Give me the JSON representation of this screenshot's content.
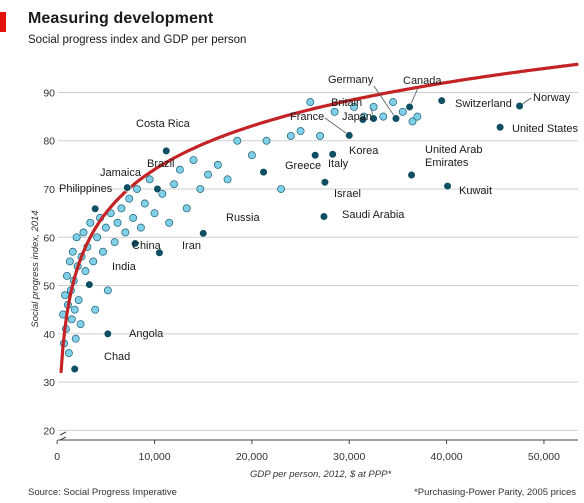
{
  "header": {
    "title": "Measuring development",
    "subtitle": "Social progress index and GDP per person"
  },
  "footer": {
    "source": "Source: Social Progress Imperative",
    "note": "*Purchasing-Power Parity, 2005 prices"
  },
  "colors": {
    "accent": "#e3120b",
    "highlight_point": "#0e4f63",
    "other_point": "#7fcfe6",
    "point_stroke": "#1d5f78",
    "grid": "#cfcfcf",
    "trend": "#c42325"
  },
  "chart_data": {
    "type": "scatter",
    "title": "Measuring development",
    "subtitle": "Social progress index and GDP per person",
    "xlabel": "GDP per person, 2012, $ at PPP*",
    "ylabel": "Social progress index, 2014",
    "xlim": [
      -3000,
      53500
    ],
    "ylim": [
      18,
      93
    ],
    "y_axis_break": true,
    "xticks": [
      0,
      10000,
      20000,
      30000,
      40000,
      50000
    ],
    "xtick_labels": [
      "0",
      "10,000",
      "20,000",
      "30,000",
      "40,000",
      "50,000"
    ],
    "yticks": [
      20,
      30,
      40,
      50,
      60,
      70,
      80,
      90
    ],
    "ytick_labels": [
      "20",
      "30",
      "40",
      "50",
      "60",
      "70",
      "80",
      "90"
    ],
    "grid": true,
    "trend_line": "logarithmic",
    "labelled_countries": [
      {
        "name": "Norway",
        "x": 47500,
        "y": 87.2
      },
      {
        "name": "Switzerland",
        "x": 39500,
        "y": 88.3
      },
      {
        "name": "United States",
        "x": 45500,
        "y": 82.8
      },
      {
        "name": "Canada",
        "x": 36200,
        "y": 87.0
      },
      {
        "name": "Germany",
        "x": 34800,
        "y": 84.6
      },
      {
        "name": "Britain",
        "x": 32500,
        "y": 84.6
      },
      {
        "name": "Japan",
        "x": 31400,
        "y": 84.4
      },
      {
        "name": "France",
        "x": 30000,
        "y": 81.1
      },
      {
        "name": "Korea",
        "x": 28300,
        "y": 77.2
      },
      {
        "name": "Italy",
        "x": 26500,
        "y": 77.0
      },
      {
        "name": "Greece",
        "x": 21200,
        "y": 73.5
      },
      {
        "name": "Israel",
        "x": 27500,
        "y": 71.4
      },
      {
        "name": "United Arab Emirates",
        "x": 36400,
        "y": 72.9
      },
      {
        "name": "Kuwait",
        "x": 40100,
        "y": 70.6
      },
      {
        "name": "Saudi Arabia",
        "x": 27400,
        "y": 64.3
      },
      {
        "name": "Costa Rica",
        "x": 11200,
        "y": 77.9
      },
      {
        "name": "Brazil",
        "x": 10300,
        "y": 70.0
      },
      {
        "name": "Jamaica",
        "x": 7200,
        "y": 70.3
      },
      {
        "name": "Philippines",
        "x": 3900,
        "y": 65.9
      },
      {
        "name": "Russia",
        "x": 15000,
        "y": 60.8
      },
      {
        "name": "Iran",
        "x": 10500,
        "y": 56.8
      },
      {
        "name": "China",
        "x": 8000,
        "y": 58.7
      },
      {
        "name": "India",
        "x": 3300,
        "y": 50.2
      },
      {
        "name": "Angola",
        "x": 5200,
        "y": 40.0
      },
      {
        "name": "Chad",
        "x": 1800,
        "y": 32.7
      }
    ],
    "other_countries": [
      {
        "x": 600,
        "y": 44
      },
      {
        "x": 700,
        "y": 38
      },
      {
        "x": 800,
        "y": 48
      },
      {
        "x": 900,
        "y": 41
      },
      {
        "x": 1000,
        "y": 52
      },
      {
        "x": 1100,
        "y": 46
      },
      {
        "x": 1200,
        "y": 36
      },
      {
        "x": 1300,
        "y": 55
      },
      {
        "x": 1400,
        "y": 49
      },
      {
        "x": 1500,
        "y": 43
      },
      {
        "x": 1600,
        "y": 57
      },
      {
        "x": 1700,
        "y": 51
      },
      {
        "x": 1800,
        "y": 45
      },
      {
        "x": 1900,
        "y": 39
      },
      {
        "x": 2000,
        "y": 60
      },
      {
        "x": 2100,
        "y": 54
      },
      {
        "x": 2200,
        "y": 47
      },
      {
        "x": 2400,
        "y": 42
      },
      {
        "x": 2500,
        "y": 56
      },
      {
        "x": 2700,
        "y": 61
      },
      {
        "x": 2900,
        "y": 53
      },
      {
        "x": 3100,
        "y": 58
      },
      {
        "x": 3400,
        "y": 63
      },
      {
        "x": 3700,
        "y": 55
      },
      {
        "x": 3900,
        "y": 45
      },
      {
        "x": 4100,
        "y": 60
      },
      {
        "x": 4400,
        "y": 64
      },
      {
        "x": 4700,
        "y": 57
      },
      {
        "x": 5000,
        "y": 62
      },
      {
        "x": 5200,
        "y": 49
      },
      {
        "x": 5500,
        "y": 65
      },
      {
        "x": 5900,
        "y": 59
      },
      {
        "x": 6200,
        "y": 63
      },
      {
        "x": 6600,
        "y": 66
      },
      {
        "x": 7000,
        "y": 61
      },
      {
        "x": 7400,
        "y": 68
      },
      {
        "x": 7800,
        "y": 64
      },
      {
        "x": 8200,
        "y": 70
      },
      {
        "x": 8600,
        "y": 62
      },
      {
        "x": 9000,
        "y": 67
      },
      {
        "x": 9500,
        "y": 72
      },
      {
        "x": 10000,
        "y": 65
      },
      {
        "x": 10800,
        "y": 69
      },
      {
        "x": 11500,
        "y": 63
      },
      {
        "x": 12000,
        "y": 71
      },
      {
        "x": 12600,
        "y": 74
      },
      {
        "x": 13300,
        "y": 66
      },
      {
        "x": 14000,
        "y": 76
      },
      {
        "x": 14700,
        "y": 70
      },
      {
        "x": 15500,
        "y": 73
      },
      {
        "x": 16500,
        "y": 75
      },
      {
        "x": 17500,
        "y": 72
      },
      {
        "x": 18500,
        "y": 80
      },
      {
        "x": 20000,
        "y": 77
      },
      {
        "x": 21500,
        "y": 80
      },
      {
        "x": 23000,
        "y": 70
      },
      {
        "x": 24000,
        "y": 81
      },
      {
        "x": 25000,
        "y": 82
      },
      {
        "x": 26000,
        "y": 88
      },
      {
        "x": 27000,
        "y": 81
      },
      {
        "x": 28500,
        "y": 86
      },
      {
        "x": 30500,
        "y": 87
      },
      {
        "x": 31500,
        "y": 85
      },
      {
        "x": 32500,
        "y": 87
      },
      {
        "x": 33500,
        "y": 85
      },
      {
        "x": 34500,
        "y": 88
      },
      {
        "x": 35500,
        "y": 86
      },
      {
        "x": 36500,
        "y": 84
      },
      {
        "x": 37000,
        "y": 85
      }
    ]
  }
}
